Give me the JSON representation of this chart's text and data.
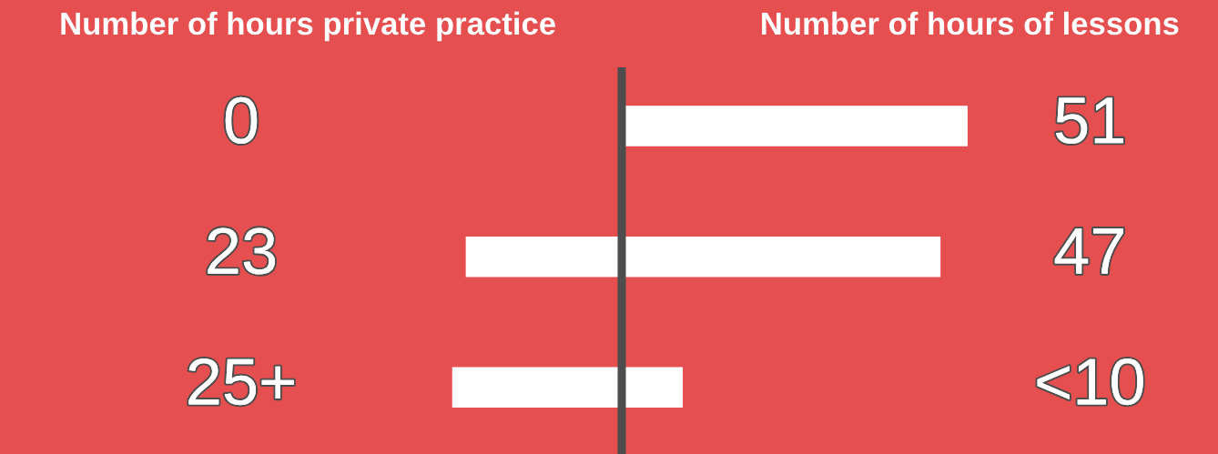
{
  "chart_data": [
    {
      "type": "bar",
      "orientation": "horizontal",
      "title": "Number of hours private practice",
      "categories": [
        null,
        null,
        null
      ],
      "series": [
        {
          "color": "#ffffff",
          "values": [
            0,
            23,
            25
          ],
          "value_labels": [
            "0",
            "23",
            "25+"
          ]
        }
      ]
    },
    {
      "type": "bar",
      "orientation": "horizontal",
      "title": "Number of hours of lessons",
      "categories": [
        null,
        null,
        null
      ],
      "series": [
        {
          "color": "#ffffff",
          "values": [
            51,
            47,
            9
          ],
          "value_labels": [
            "51",
            "47",
            "<10"
          ]
        }
      ],
      "ref_lines": [
        {
          "axis": "x",
          "value": 0,
          "color": "#4d4d4d"
        }
      ]
    }
  ]
}
